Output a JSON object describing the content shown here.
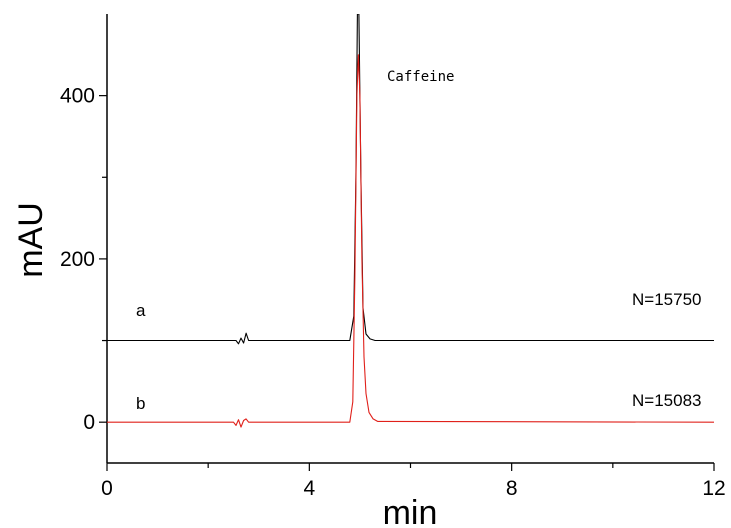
{
  "chart_data": {
    "type": "line",
    "xlabel": "min",
    "ylabel": "mAU",
    "xlim": [
      0,
      12
    ],
    "ylim": [
      -50,
      500
    ],
    "x_ticks": [
      "0",
      "4",
      "8",
      "12"
    ],
    "y_ticks": [
      "0",
      "200",
      "400"
    ],
    "grid": false,
    "series": [
      {
        "name": "a",
        "color": "#000000",
        "baseline": 100,
        "x": [
          0.0,
          2.55,
          2.6,
          2.65,
          2.7,
          2.75,
          2.8,
          4.8,
          4.88,
          4.92,
          4.95,
          4.98,
          5.02,
          5.06,
          5.12,
          5.2,
          5.3,
          12.0
        ],
        "y": [
          100,
          100,
          96,
          103,
          97,
          109,
          100,
          100,
          130,
          300,
          500,
          500,
          300,
          140,
          108,
          102,
          100,
          100
        ]
      },
      {
        "name": "b",
        "color": "#e0201a",
        "baseline": 0,
        "x": [
          0.0,
          2.5,
          2.55,
          2.6,
          2.65,
          2.7,
          2.75,
          2.8,
          4.8,
          4.86,
          4.9,
          4.94,
          4.97,
          5.0,
          5.04,
          5.08,
          5.12,
          5.18,
          5.26,
          5.35,
          12.0
        ],
        "y": [
          0,
          0,
          -4,
          3,
          -6,
          2,
          4,
          0,
          0,
          25,
          180,
          400,
          450,
          400,
          200,
          80,
          35,
          12,
          4,
          1,
          0
        ]
      }
    ],
    "annotations": {
      "peak_label": "Caffeine",
      "label_a": "a",
      "label_b": "b",
      "n_a": "N=15750",
      "n_b": "N=15083"
    }
  }
}
